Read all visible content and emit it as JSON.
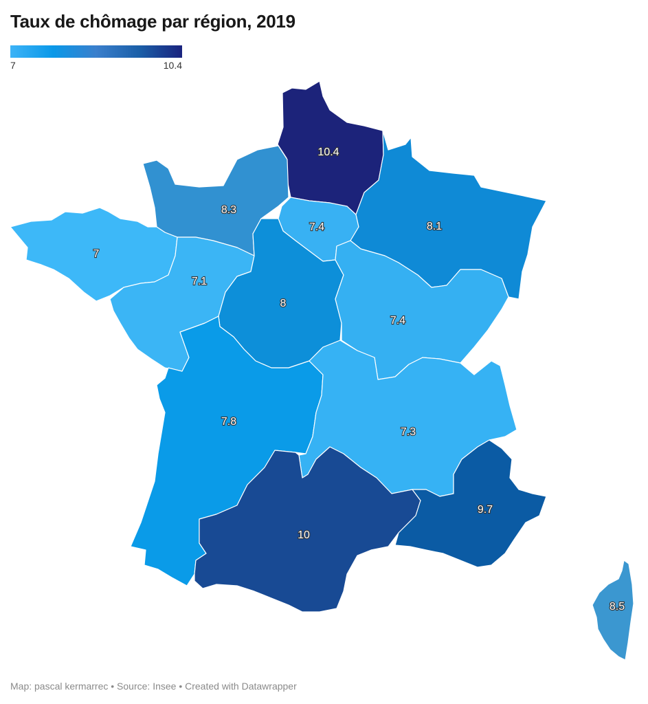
{
  "title": "Taux de chômage par région, 2019",
  "legend": {
    "min_label": "7",
    "max_label": "10.4",
    "gradient_colors": [
      "#3db3f7",
      "#0a98e8",
      "#3a7fcc",
      "#1b5fa8",
      "#1a237e"
    ]
  },
  "footer": "Map: pascal kermarrec • Source: Insee • Created with Datawrapper",
  "regions": [
    {
      "id": "hauts-de-france",
      "value": "10.4",
      "color": "#1c237a"
    },
    {
      "id": "normandie",
      "value": "8.3",
      "color": "#3191d1"
    },
    {
      "id": "ile-de-france",
      "value": "7.4",
      "color": "#38b1f3"
    },
    {
      "id": "grand-est",
      "value": "8.1",
      "color": "#0f8ad6"
    },
    {
      "id": "bretagne",
      "value": "7",
      "color": "#3db8f8"
    },
    {
      "id": "pays-de-la-loire",
      "value": "7.1",
      "color": "#3bb5f5"
    },
    {
      "id": "centre-val-de-loire",
      "value": "8",
      "color": "#0d8fd9"
    },
    {
      "id": "bourgogne-franche-comte",
      "value": "7.4",
      "color": "#35b0f2"
    },
    {
      "id": "nouvelle-aquitaine",
      "value": "7.8",
      "color": "#0a9be8"
    },
    {
      "id": "auvergne-rhone-alpes",
      "value": "7.3",
      "color": "#36b2f4"
    },
    {
      "id": "occitanie",
      "value": "10",
      "color": "#184a94"
    },
    {
      "id": "provence-alpes-cote-d-azur",
      "value": "9.7",
      "color": "#0b5ba4"
    },
    {
      "id": "corse",
      "value": "8.5",
      "color": "#3b97d0"
    }
  ]
}
